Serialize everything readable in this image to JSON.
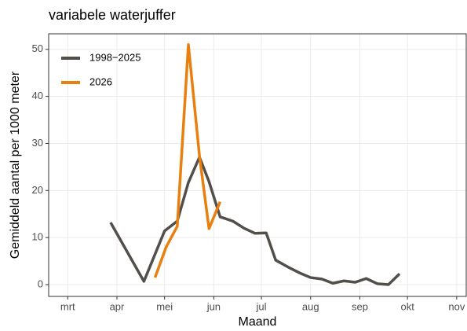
{
  "chart_data": {
    "type": "line",
    "title": "variabele waterjuffer",
    "x_label": "Maand",
    "y_label": "Gemiddeld aantal per 1000 meter",
    "xlim": [
      48,
      311
    ],
    "ylim": [
      -2.5,
      53.3
    ],
    "xticks": [
      {
        "value": 60,
        "label": "mrt"
      },
      {
        "value": 91,
        "label": "apr"
      },
      {
        "value": 121,
        "label": "mei"
      },
      {
        "value": 152,
        "label": "jun"
      },
      {
        "value": 182,
        "label": "jul"
      },
      {
        "value": 213,
        "label": "aug"
      },
      {
        "value": 244,
        "label": "sep"
      },
      {
        "value": 274,
        "label": "okt"
      },
      {
        "value": 305,
        "label": "nov"
      }
    ],
    "yticks": [
      0,
      10,
      20,
      30,
      40,
      50
    ],
    "grid": true,
    "legend": "top-left",
    "series": [
      {
        "name": "1998−2025",
        "color": "#524f4b",
        "x": [
          87,
          108,
          121,
          129,
          136,
          143,
          149,
          156,
          164,
          171,
          178,
          185,
          191,
          199,
          206,
          213,
          220,
          227,
          234,
          241,
          248,
          255,
          262,
          269
        ],
        "values": [
          13.2,
          0.7,
          11.4,
          13.5,
          21.7,
          27.1,
          21.9,
          14.4,
          13.5,
          12.0,
          10.9,
          11.0,
          5.2,
          3.7,
          2.5,
          1.5,
          1.2,
          0.3,
          0.8,
          0.5,
          1.3,
          0.2,
          0.0,
          2.3
        ]
      },
      {
        "name": "2026",
        "color": "#e8800f",
        "x": [
          115,
          122,
          129,
          136,
          143,
          149,
          156
        ],
        "values": [
          1.5,
          8.0,
          12.4,
          51.0,
          27.3,
          11.9,
          17.6
        ]
      }
    ]
  }
}
